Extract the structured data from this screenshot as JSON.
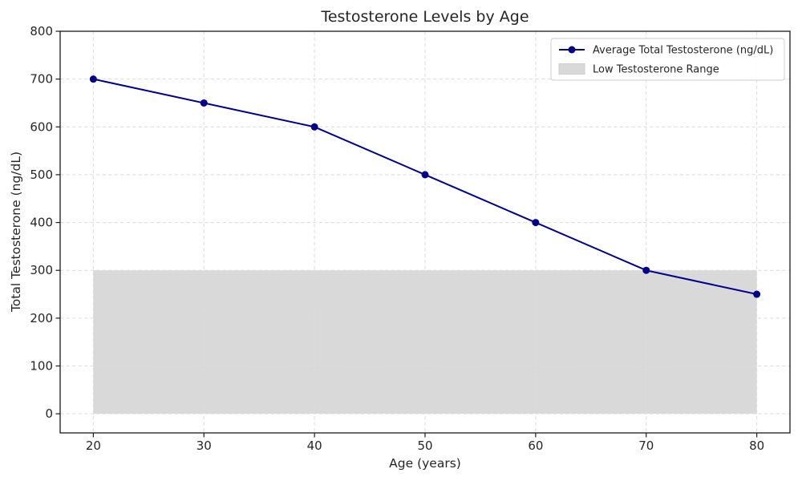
{
  "chart_data": {
    "type": "line",
    "title": "Testosterone Levels by Age",
    "xlabel": "Age (years)",
    "ylabel": "Total Testosterone (ng/dL)",
    "x": [
      20,
      30,
      40,
      50,
      60,
      70,
      80
    ],
    "series": [
      {
        "name": "Average Total Testosterone (ng/dL)",
        "values": [
          700,
          650,
          600,
          500,
          400,
          300,
          250
        ],
        "color": "#00008B",
        "marker": "circle",
        "line_style": "solid"
      }
    ],
    "shaded_region": {
      "label": "Low Testosterone Range",
      "x_range": [
        20,
        80
      ],
      "y_range": [
        0,
        300
      ],
      "color": "#D9D9D9"
    },
    "xlim": [
      17,
      83
    ],
    "ylim": [
      -40,
      800
    ],
    "xticks": [
      20,
      30,
      40,
      50,
      60,
      70,
      80
    ],
    "yticks": [
      0,
      100,
      200,
      300,
      400,
      500,
      600,
      700,
      800
    ],
    "grid": true,
    "grid_style": "dashed",
    "legend_position": "upper right",
    "legend": [
      {
        "label": "Average Total Testosterone (ng/dL)",
        "swatch": "line-marker",
        "color": "#00008B"
      },
      {
        "label": "Low Testosterone Range",
        "swatch": "patch",
        "color": "#D9D9D9"
      }
    ],
    "colors": {
      "line": "#00008B",
      "region_fill": "#D9D9D9",
      "grid": "#DCDCDC",
      "spine": "#1A1A1A",
      "text": "#262626",
      "legend_border": "#CCCCCC",
      "legend_bg": "#FFFFFF",
      "background": "#FFFFFF"
    }
  }
}
